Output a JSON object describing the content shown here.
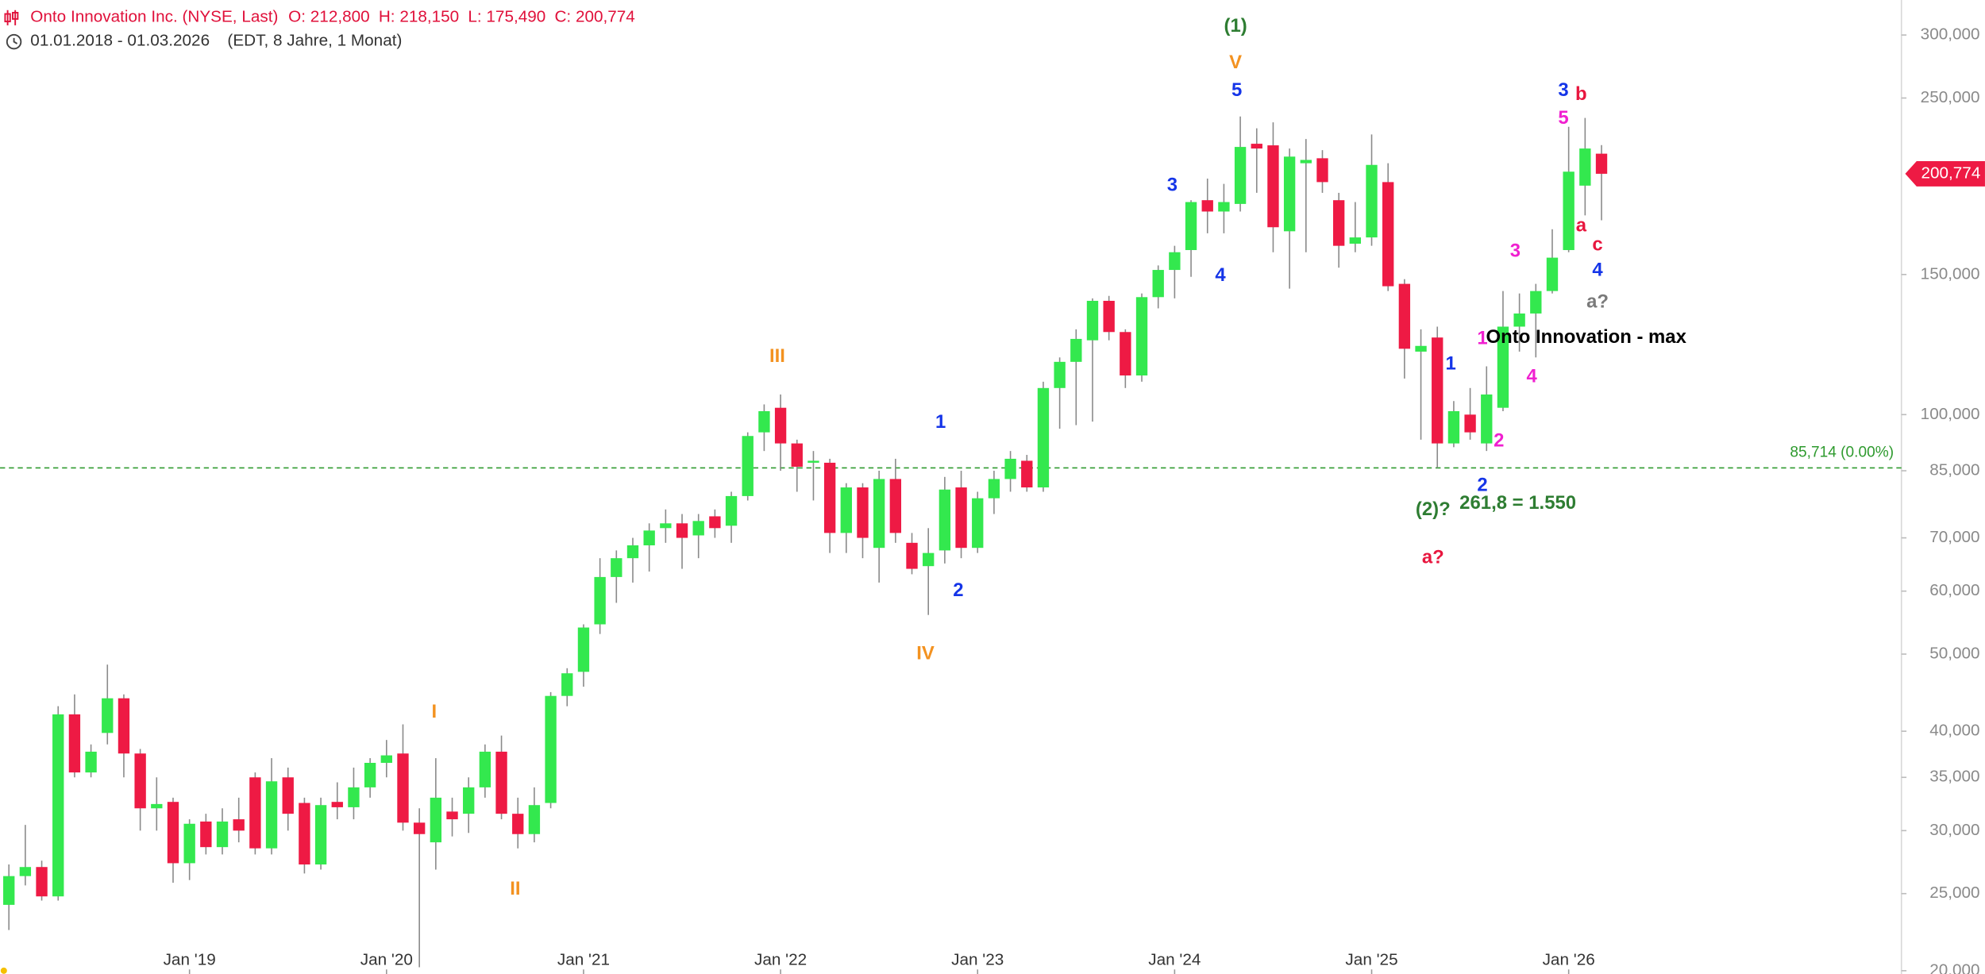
{
  "chart_data": {
    "type": "candlestick",
    "title": "Onto Innovation Inc. (NYSE, Last)",
    "ohlc_labels": [
      "O: 212,800",
      "H: 218,150",
      "L: 175,490",
      "C: 200,774"
    ],
    "subtitle": "01.01.2018 - 01.03.2026",
    "subtitle_note": "(EDT, 8 Jahre, 1 Monat)",
    "log_scale": true,
    "grid": false,
    "up_color": "#33e84e",
    "down_color": "#ee1a44",
    "wick_color": "#8a8a8a",
    "categories": [
      null,
      null,
      null,
      null,
      null,
      null,
      null,
      null,
      null,
      null,
      null,
      "Jan '19",
      null,
      null,
      null,
      null,
      null,
      null,
      null,
      null,
      null,
      null,
      null,
      "Jan '20",
      null,
      null,
      null,
      null,
      null,
      null,
      null,
      null,
      null,
      null,
      null,
      "Jan '21",
      null,
      null,
      null,
      null,
      null,
      null,
      null,
      null,
      null,
      null,
      null,
      "Jan '22",
      null,
      null,
      null,
      null,
      null,
      null,
      null,
      null,
      null,
      null,
      null,
      "Jan '23",
      null,
      null,
      null,
      null,
      null,
      null,
      null,
      null,
      null,
      null,
      null,
      "Jan '24",
      null,
      null,
      null,
      null,
      null,
      null,
      null,
      null,
      null,
      null,
      null,
      "Jan '25",
      null,
      null,
      null,
      null,
      null,
      null,
      null,
      null,
      null,
      null,
      null,
      "Jan '26",
      null,
      null
    ],
    "open": [
      24.2,
      26.3,
      27,
      24.8,
      42,
      35.5,
      39.8,
      44,
      37.5,
      32,
      32.6,
      27.3,
      30.8,
      28.6,
      31,
      35,
      28.5,
      35,
      32.5,
      27.2,
      32.6,
      32.1,
      34,
      36.5,
      37.5,
      30.7,
      29,
      31.7,
      31.5,
      34,
      37.7,
      31.5,
      29.7,
      32.5,
      44.3,
      47.5,
      54.5,
      62.5,
      66,
      68.5,
      72,
      73,
      70.5,
      74.5,
      72.5,
      79,
      95,
      102,
      92,
      87,
      87,
      71,
      81,
      68,
      83,
      69,
      64.5,
      67.5,
      81,
      68,
      78.5,
      83,
      87.5,
      81,
      108,
      116.5,
      124,
      139,
      127,
      112,
      140.5,
      152,
      161,
      186,
      180,
      184,
      219,
      218,
      170,
      207,
      210,
      186,
      164,
      167,
      196,
      146,
      120,
      125,
      92,
      100,
      92,
      102,
      129,
      134,
      143,
      161,
      194,
      212.8
    ],
    "high": [
      27.2,
      30.5,
      27.5,
      43,
      44.5,
      38.5,
      48.5,
      44.5,
      38,
      35,
      33,
      31,
      31.5,
      32,
      33,
      35.5,
      37,
      36,
      33,
      33,
      34.5,
      36,
      37,
      39,
      40.8,
      32,
      37,
      33,
      35,
      38.5,
      39.5,
      33,
      34,
      44.8,
      48,
      54.5,
      66,
      67.5,
      70,
      73,
      76,
      75,
      75,
      76,
      80,
      95,
      103,
      106,
      93,
      90,
      88,
      82,
      82,
      85,
      88,
      71,
      72,
      83.5,
      85,
      80,
      85,
      90,
      89,
      110,
      118,
      128,
      140,
      141,
      128,
      142,
      154,
      163,
      186,
      198,
      195,
      237,
      229,
      233,
      216,
      222,
      215,
      190,
      185,
      225,
      207,
      148,
      128,
      129,
      104,
      108,
      115,
      143,
      142,
      146,
      171,
      230,
      236,
      218.15
    ],
    "low": [
      22.5,
      25.6,
      24.5,
      24.5,
      35,
      35,
      38.5,
      35,
      30,
      30,
      25.8,
      26,
      28,
      28,
      29,
      28,
      28,
      30,
      26.5,
      26.8,
      31,
      31,
      33,
      35,
      30,
      20.2,
      26.8,
      29.5,
      29.8,
      33,
      31,
      28.5,
      29,
      32,
      43,
      45.5,
      53,
      58,
      61.5,
      63.5,
      69,
      64,
      66,
      70,
      69,
      78,
      90,
      85,
      80,
      78,
      67,
      67,
      66,
      61.5,
      69,
      63,
      56,
      65,
      66,
      67,
      75,
      80,
      80,
      80,
      96,
      97,
      98,
      124,
      108,
      110,
      136,
      140,
      149,
      169,
      169,
      180,
      190,
      160,
      144,
      160,
      190,
      153,
      160,
      163,
      143,
      111,
      93,
      85.714,
      91,
      93,
      90,
      101,
      120,
      118,
      142,
      160,
      178,
      175.49
    ],
    "close": [
      26.3,
      27,
      24.8,
      42,
      35.5,
      37.7,
      44,
      37.5,
      32,
      32.4,
      27.3,
      30.6,
      28.6,
      30.8,
      30,
      28.5,
      34.6,
      31.5,
      27.2,
      32.3,
      32.1,
      34,
      36.5,
      37.3,
      30.7,
      29.7,
      33,
      31,
      34,
      37.7,
      31.5,
      29.7,
      32.3,
      44.3,
      47.3,
      54,
      62.5,
      66,
      68.5,
      71.5,
      73,
      70,
      73.5,
      72,
      79,
      94,
      101,
      92,
      86,
      87.5,
      71,
      81,
      70,
      83,
      71,
      64,
      67,
      80.5,
      68,
      78.5,
      83,
      88,
      81,
      108,
      116.5,
      124.5,
      139,
      127,
      112,
      140.5,
      152,
      160,
      185,
      180,
      185,
      217,
      216,
      172,
      211,
      209,
      196,
      163,
      167,
      206,
      145,
      121,
      122,
      92,
      101,
      95,
      106,
      129,
      134,
      143,
      157.5,
      202,
      216,
      200.774
    ],
    "ylim": [
      20,
      332
    ],
    "yticks": [
      {
        "value": 20,
        "label": "20,000"
      },
      {
        "value": 25,
        "label": "25,000"
      },
      {
        "value": 30,
        "label": "30,000"
      },
      {
        "value": 35,
        "label": "35,000"
      },
      {
        "value": 40,
        "label": "40,000"
      },
      {
        "value": 50,
        "label": "50,000"
      },
      {
        "value": 60,
        "label": "60,000"
      },
      {
        "value": 70,
        "label": "70,000"
      },
      {
        "value": 85,
        "label": "85,000"
      },
      {
        "value": 100,
        "label": "100,000"
      },
      {
        "value": 150,
        "label": "150,000"
      },
      {
        "value": 250,
        "label": "250,000"
      },
      {
        "value": 300,
        "label": "300,000"
      }
    ],
    "reference_line": {
      "value": 85.714,
      "label": "85,714 (0.00%)",
      "color": "#2e9a2e"
    },
    "last_price": {
      "value": 200.774,
      "label": "200,774",
      "color": "#ee1a44"
    },
    "annotations": [
      {
        "text": "(1)",
        "color": "#2e7d32"
      },
      {
        "text": "V",
        "color": "#f39220"
      },
      {
        "text": "5",
        "color": "#1535e8"
      },
      {
        "text": "3",
        "color": "#1535e8"
      },
      {
        "text": "4",
        "color": "#1535e8"
      },
      {
        "text": "III",
        "color": "#f39220"
      },
      {
        "text": "1",
        "color": "#1535e8"
      },
      {
        "text": "2",
        "color": "#1535e8"
      },
      {
        "text": "IV",
        "color": "#f39220"
      },
      {
        "text": "I",
        "color": "#f39220"
      },
      {
        "text": "II",
        "color": "#f39220"
      },
      {
        "text": "3",
        "color": "#1535e8"
      },
      {
        "text": "b",
        "color": "#e8163e"
      },
      {
        "text": "5",
        "color": "#f020d0"
      },
      {
        "text": "a",
        "color": "#e8163e"
      },
      {
        "text": "c",
        "color": "#e8163e"
      },
      {
        "text": "3",
        "color": "#f020d0"
      },
      {
        "text": "4",
        "color": "#1535e8"
      },
      {
        "text": "a?",
        "color": "#7a7a7a"
      },
      {
        "text": "Onto Innovation - max",
        "color": "#000000"
      },
      {
        "text": "1",
        "color": "#f020d0"
      },
      {
        "text": "1",
        "color": "#1535e8"
      },
      {
        "text": "4",
        "color": "#f020d0"
      },
      {
        "text": "2",
        "color": "#f020d0"
      },
      {
        "text": "2",
        "color": "#1535e8"
      },
      {
        "text": "(2)?",
        "color": "#2e7d32"
      },
      {
        "text": "261,8 = 1.550",
        "color": "#2e7d32"
      },
      {
        "text": "a?",
        "color": "#e8163e"
      }
    ]
  }
}
